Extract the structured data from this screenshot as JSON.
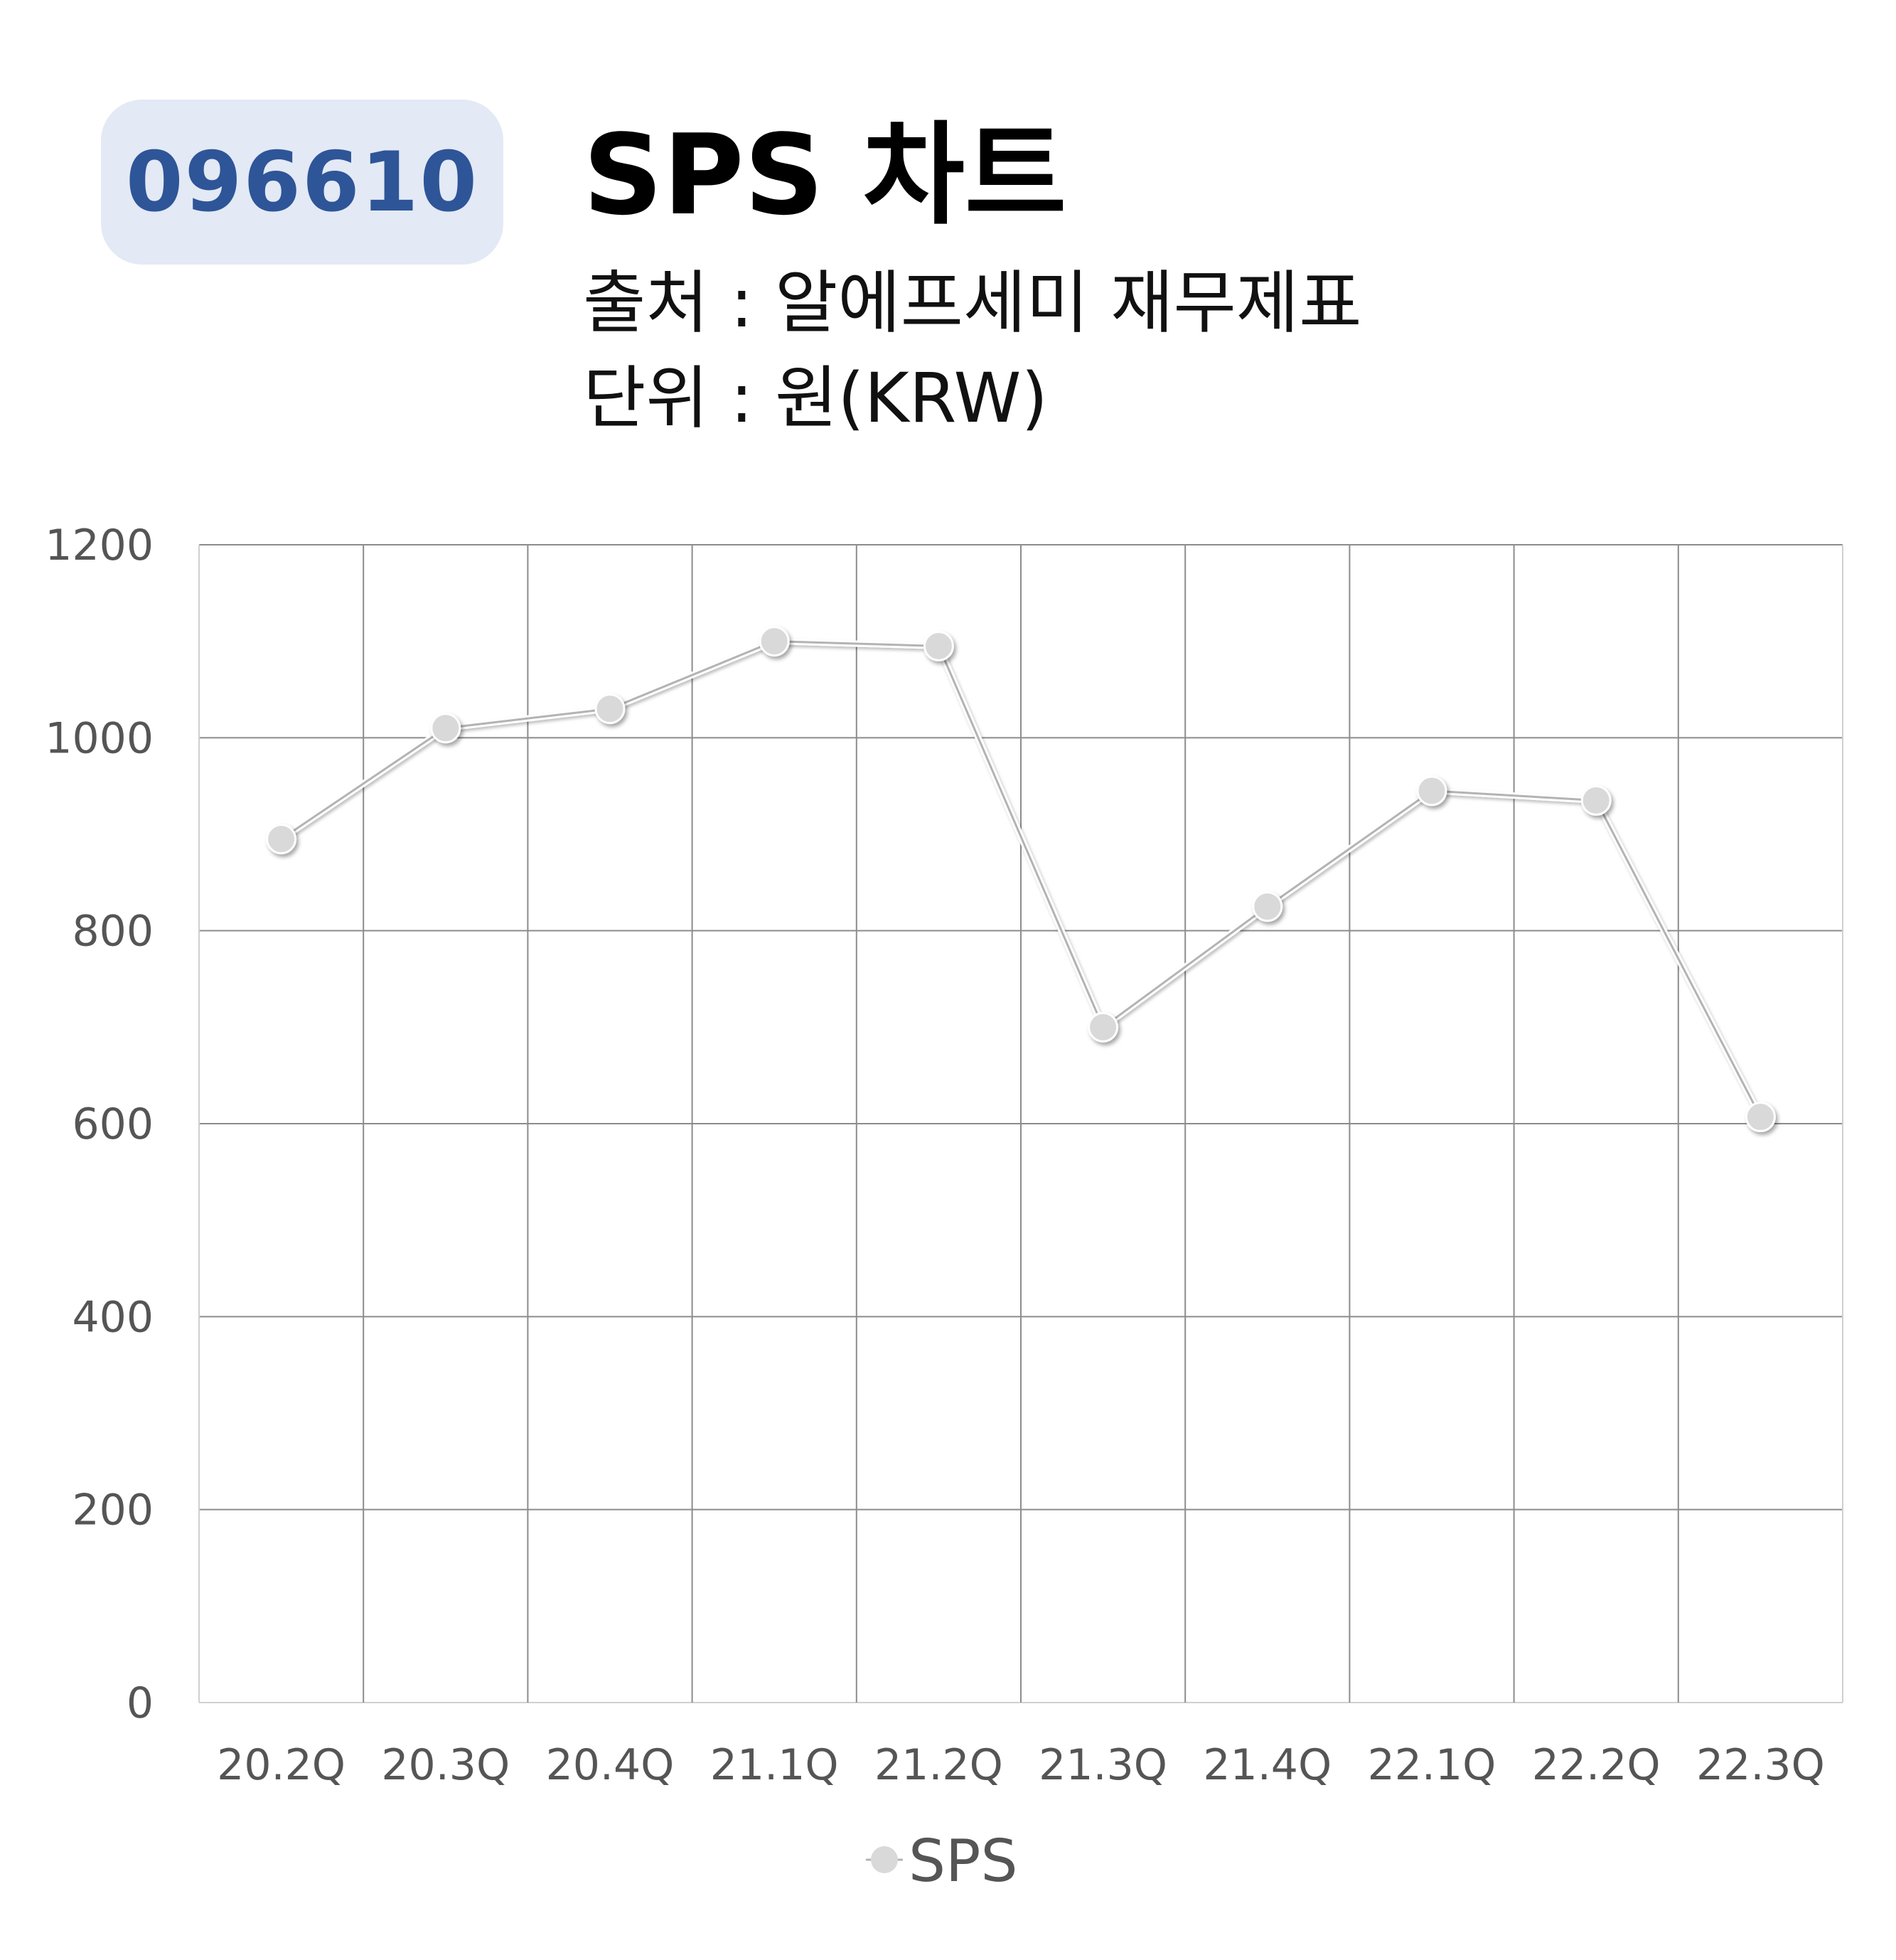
{
  "header": {
    "ticker": "096610",
    "title": "SPS 차트",
    "source": "출처 : 알에프세미 재무제표",
    "unit": "단위 : 원(KRW)"
  },
  "chart_data": {
    "type": "line",
    "title": "SPS 차트",
    "categories": [
      "20.2Q",
      "20.3Q",
      "20.4Q",
      "21.1Q",
      "21.2Q",
      "21.3Q",
      "21.4Q",
      "22.1Q",
      "22.2Q",
      "22.3Q"
    ],
    "series": [
      {
        "name": "SPS",
        "values": [
          895,
          1010,
          1030,
          1100,
          1095,
          700,
          825,
          945,
          935,
          607
        ],
        "color": "#d9d9d9",
        "line_color": "#b3b3b3"
      }
    ],
    "yticks": [
      "0",
      "200",
      "400",
      "600",
      "800",
      "1000",
      "1200"
    ],
    "ylim": [
      0,
      1200
    ],
    "grid": true,
    "legend_position": "bottom-center"
  }
}
